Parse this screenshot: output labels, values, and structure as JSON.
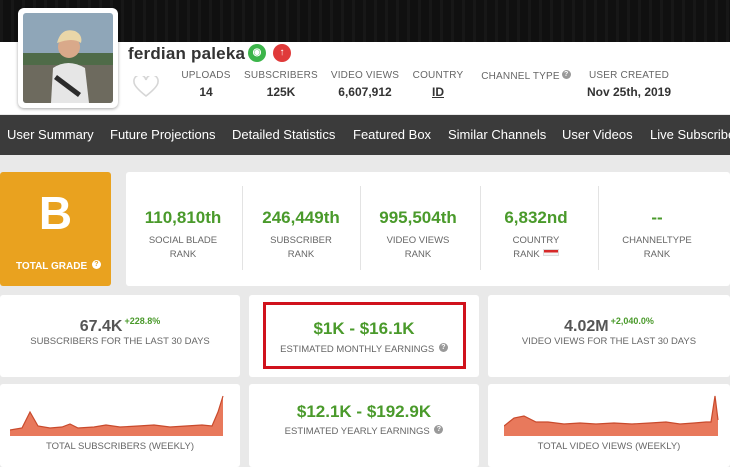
{
  "channel": {
    "name": "ferdian paleka",
    "badges": [
      "eye-icon",
      "arrow-up-icon"
    ]
  },
  "meta": [
    {
      "label": "UPLOADS",
      "value": "14"
    },
    {
      "label": "SUBSCRIBERS",
      "value": "125K"
    },
    {
      "label": "VIDEO VIEWS",
      "value": "6,607,912"
    },
    {
      "label": "COUNTRY",
      "value": "ID"
    },
    {
      "label": "CHANNEL TYPE",
      "value": ""
    },
    {
      "label": "USER CREATED",
      "value": "Nov 25th, 2019"
    }
  ],
  "nav": [
    "User Summary",
    "Future Projections",
    "Detailed Statistics",
    "Featured Box",
    "Similar Channels",
    "User Videos",
    "Live Subscriber"
  ],
  "grade": {
    "letter": "B",
    "label": "TOTAL GRADE"
  },
  "ranks": [
    {
      "value": "110,810th",
      "line1": "SOCIAL BLADE",
      "line2": "RANK"
    },
    {
      "value": "246,449th",
      "line1": "SUBSCRIBER",
      "line2": "RANK"
    },
    {
      "value": "995,504th",
      "line1": "VIDEO VIEWS",
      "line2": "RANK"
    },
    {
      "value": "6,832nd",
      "line1": "COUNTRY",
      "line2": "RANK"
    },
    {
      "value": "--",
      "line1": "CHANNELTYPE",
      "line2": "RANK"
    }
  ],
  "stats": {
    "subs30": {
      "value": "67.4K",
      "change": "+228.8%",
      "label": "SUBSCRIBERS FOR THE LAST 30 DAYS"
    },
    "monthly": {
      "value": "$1K - $16.1K",
      "label": "ESTIMATED MONTHLY EARNINGS"
    },
    "views30": {
      "value": "4.02M",
      "change": "+2,040.0%",
      "label": "VIDEO VIEWS FOR THE LAST 30 DAYS"
    },
    "totalSubs": {
      "label": "TOTAL SUBSCRIBERS (WEEKLY)"
    },
    "yearly": {
      "value": "$12.1K - $192.9K",
      "label": "ESTIMATED YEARLY EARNINGS"
    },
    "totalViews": {
      "label": "TOTAL VIDEO VIEWS (WEEKLY)"
    }
  },
  "colors": {
    "accent_green": "#4a9a2b",
    "grade_orange": "#e9a21f",
    "nav_bg": "#3b3b3b",
    "highlight_red": "#d0121c",
    "spark_fill": "#e56a4a"
  }
}
